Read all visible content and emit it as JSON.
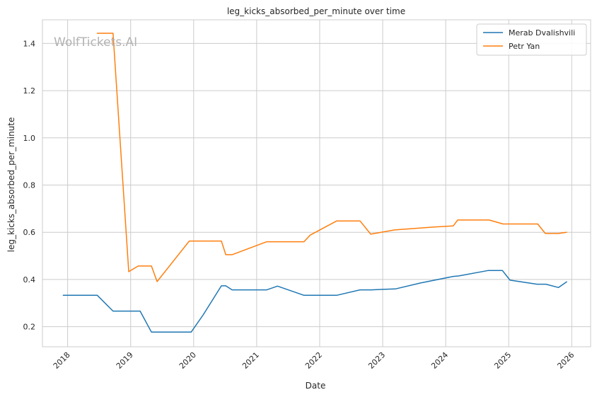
{
  "chart_data": {
    "type": "line",
    "title": "leg_kicks_absorbed_per_minute over time",
    "xlabel": "Date",
    "ylabel": "leg_kicks_absorbed_per_minute",
    "watermark": "WolfTickets.AI",
    "xlim": [
      2017.6,
      2026.3
    ],
    "ylim": [
      0.115,
      1.5
    ],
    "x_ticks": [
      2018,
      2019,
      2020,
      2021,
      2022,
      2023,
      2024,
      2025,
      2026
    ],
    "x_tick_labels": [
      "2018",
      "2019",
      "2020",
      "2021",
      "2022",
      "2023",
      "2024",
      "2025",
      "2026"
    ],
    "y_ticks": [
      0.2,
      0.4,
      0.6,
      0.8,
      1.0,
      1.2,
      1.4
    ],
    "y_tick_labels": [
      "0.2",
      "0.4",
      "0.6",
      "0.8",
      "1.0",
      "1.2",
      "1.4"
    ],
    "grid": true,
    "legend_position": "top-right",
    "series": [
      {
        "name": "Merab Dvalishvili",
        "color": "#1f77b4",
        "x": [
          2017.93,
          2018.47,
          2018.72,
          2018.97,
          2019.15,
          2019.33,
          2019.55,
          2019.96,
          2020.15,
          2020.44,
          2020.51,
          2020.61,
          2020.8,
          2021.16,
          2021.33,
          2021.75,
          2021.98,
          2022.27,
          2022.64,
          2022.82,
          2023.0,
          2023.2,
          2023.6,
          2024.12,
          2024.21,
          2024.67,
          2024.9,
          2025.02,
          2025.45,
          2025.59,
          2025.79,
          2025.92
        ],
        "y": [
          0.333,
          0.333,
          0.266,
          0.266,
          0.266,
          0.177,
          0.177,
          0.177,
          0.25,
          0.373,
          0.373,
          0.356,
          0.356,
          0.356,
          0.372,
          0.333,
          0.333,
          0.333,
          0.356,
          0.356,
          0.358,
          0.36,
          0.385,
          0.413,
          0.415,
          0.438,
          0.438,
          0.397,
          0.38,
          0.38,
          0.366,
          0.39
        ]
      },
      {
        "name": "Petr Yan",
        "color": "#ff7f0e",
        "x": [
          2018.47,
          2018.72,
          2018.97,
          2019.12,
          2019.33,
          2019.42,
          2019.93,
          2020.44,
          2020.51,
          2020.61,
          2021.16,
          2021.75,
          2021.85,
          2022.27,
          2022.64,
          2022.81,
          2023.19,
          2023.8,
          2024.12,
          2024.19,
          2024.69,
          2024.91,
          2025.46,
          2025.58,
          2025.79,
          2025.92
        ],
        "y": [
          1.443,
          1.443,
          0.433,
          0.457,
          0.457,
          0.391,
          0.563,
          0.563,
          0.505,
          0.505,
          0.56,
          0.56,
          0.588,
          0.648,
          0.648,
          0.592,
          0.61,
          0.622,
          0.627,
          0.652,
          0.652,
          0.635,
          0.635,
          0.595,
          0.595,
          0.6
        ]
      }
    ]
  }
}
